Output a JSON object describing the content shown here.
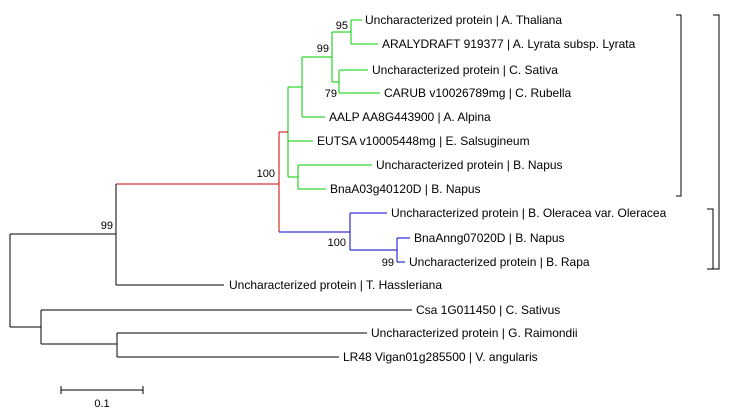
{
  "tree": {
    "taxa": [
      {
        "id": "t1",
        "label": "Uncharacterized protein | A. Thaliana",
        "clade": "green"
      },
      {
        "id": "t2",
        "label": "ARALYDRAFT 919377 | A. Lyrata subsp. Lyrata",
        "clade": "green"
      },
      {
        "id": "t3",
        "label": "Uncharacterized protein | C. Sativa",
        "clade": "green"
      },
      {
        "id": "t4",
        "label": "CARUB v10026789mg | C. Rubella",
        "clade": "green"
      },
      {
        "id": "t5",
        "label": "AALP AA8G443900 | A. Alpina",
        "clade": "green"
      },
      {
        "id": "t6",
        "label": "EUTSA v10005448mg | E. Salsugineum",
        "clade": "green"
      },
      {
        "id": "t7",
        "label": "Uncharacterized protein | B. Napus",
        "clade": "green"
      },
      {
        "id": "t8",
        "label": "BnaA03g40120D | B. Napus",
        "clade": "green"
      },
      {
        "id": "t9",
        "label": "Uncharacterized protein | B. Oleracea var. Oleracea",
        "clade": "blue"
      },
      {
        "id": "t10",
        "label": "BnaAnng07020D | B. Napus",
        "clade": "blue"
      },
      {
        "id": "t11",
        "label": "Uncharacterized protein | B. Rapa",
        "clade": "blue"
      },
      {
        "id": "t12",
        "label": "Uncharacterized protein | T. Hassleriana",
        "clade": "black"
      },
      {
        "id": "t13",
        "label": "Csa 1G011450 | C. Sativus",
        "clade": "black"
      },
      {
        "id": "t14",
        "label": "Uncharacterized protein | G. Raimondii",
        "clade": "black"
      },
      {
        "id": "t15",
        "label": "LR48 Vigan01g285500 | V. angularis",
        "clade": "black"
      }
    ],
    "support_values": [
      {
        "node": "thaliana-lyrata",
        "value": "95"
      },
      {
        "node": "arabidopsis-camelina",
        "value": "99"
      },
      {
        "node": "sativa-rubella",
        "value": "79"
      },
      {
        "node": "brassicaceae",
        "value": "100"
      },
      {
        "node": "brassica-blue",
        "value": "100"
      },
      {
        "node": "napus-rapa",
        "value": "99"
      },
      {
        "node": "brassicales",
        "value": "99"
      }
    ],
    "scale_bar": {
      "label": "0.1"
    },
    "colors": {
      "green_clade": "#00cc00",
      "blue_clade": "#0000cc",
      "red_branch": "#cc0000",
      "default": "#000000"
    }
  }
}
